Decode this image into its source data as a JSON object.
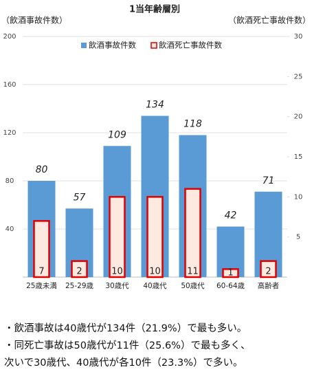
{
  "chart_data": {
    "type": "bar",
    "title": "1当年齢層別",
    "y_label": "（飲酒事故件数）",
    "y2_label": "（飲酒死亡事故件数）",
    "categories": [
      "25歳未満",
      "25-29歳",
      "30歳代",
      "40歳代",
      "50歳代",
      "60-64歳",
      "高齢者"
    ],
    "series": [
      {
        "name": "飲酒事故件数",
        "color": "#5b9bd5",
        "values": [
          80,
          57,
          109,
          134,
          118,
          42,
          71
        ]
      },
      {
        "name": "飲酒死亡事故件数",
        "color": "#e00000",
        "axis": "y2",
        "values": [
          7,
          2,
          10,
          10,
          11,
          1,
          2
        ]
      }
    ],
    "ylim": [
      0,
      200
    ],
    "yticks": [
      40,
      80,
      120,
      160,
      200
    ],
    "y2lim": [
      0,
      30
    ],
    "y2ticks": [
      5,
      10,
      15,
      20,
      25,
      30
    ],
    "grid": true,
    "legend": "top"
  },
  "notes": [
    "・飲酒事故は40歳代が134件（21.9%）で最も多い。",
    "・同死亡事故は50歳代が11件（25.6%）で最も多く、",
    "次いで30歳代、40歳代が各10件（23.3%）で多い。"
  ]
}
